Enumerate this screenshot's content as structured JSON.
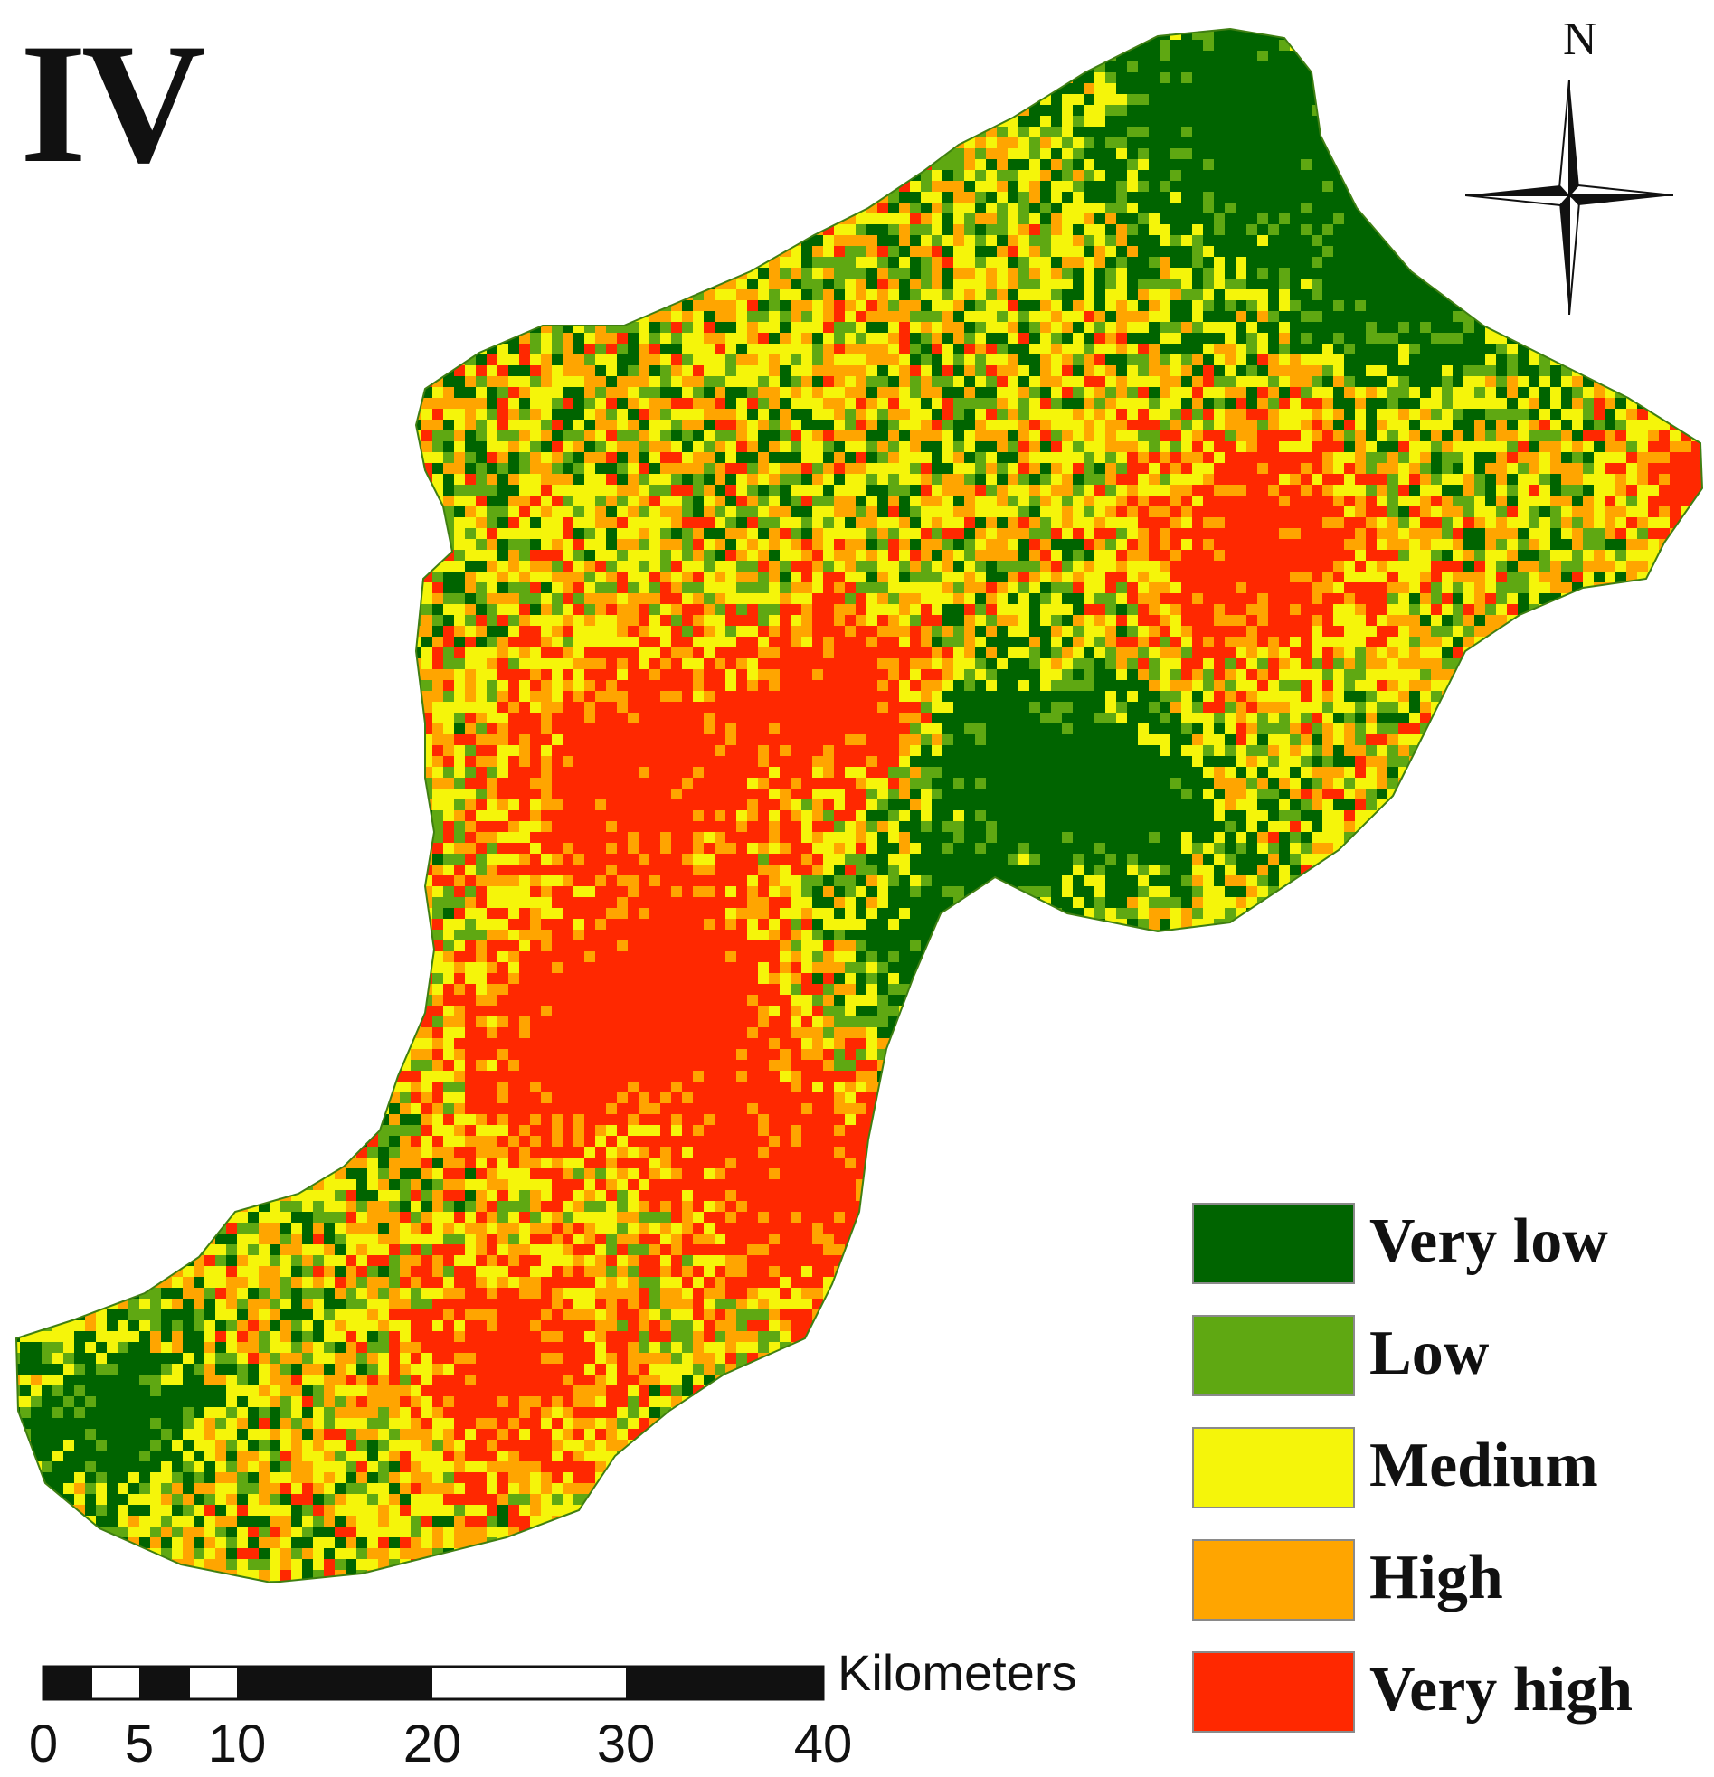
{
  "panel_label": "IV",
  "north_arrow": {
    "letter": "N",
    "icon": "north-arrow-icon"
  },
  "legend": {
    "items": [
      {
        "label": "Very low",
        "color": "#006400"
      },
      {
        "label": "Low",
        "color": "#5fa812"
      },
      {
        "label": "Medium",
        "color": "#f5f50a"
      },
      {
        "label": "High",
        "color": "#ffa500"
      },
      {
        "label": "Very high",
        "color": "#ff2800"
      }
    ]
  },
  "scale_bar": {
    "unit": "Kilometers",
    "ticks": [
      "0",
      "5",
      "10",
      "20",
      "30",
      "40"
    ]
  }
}
